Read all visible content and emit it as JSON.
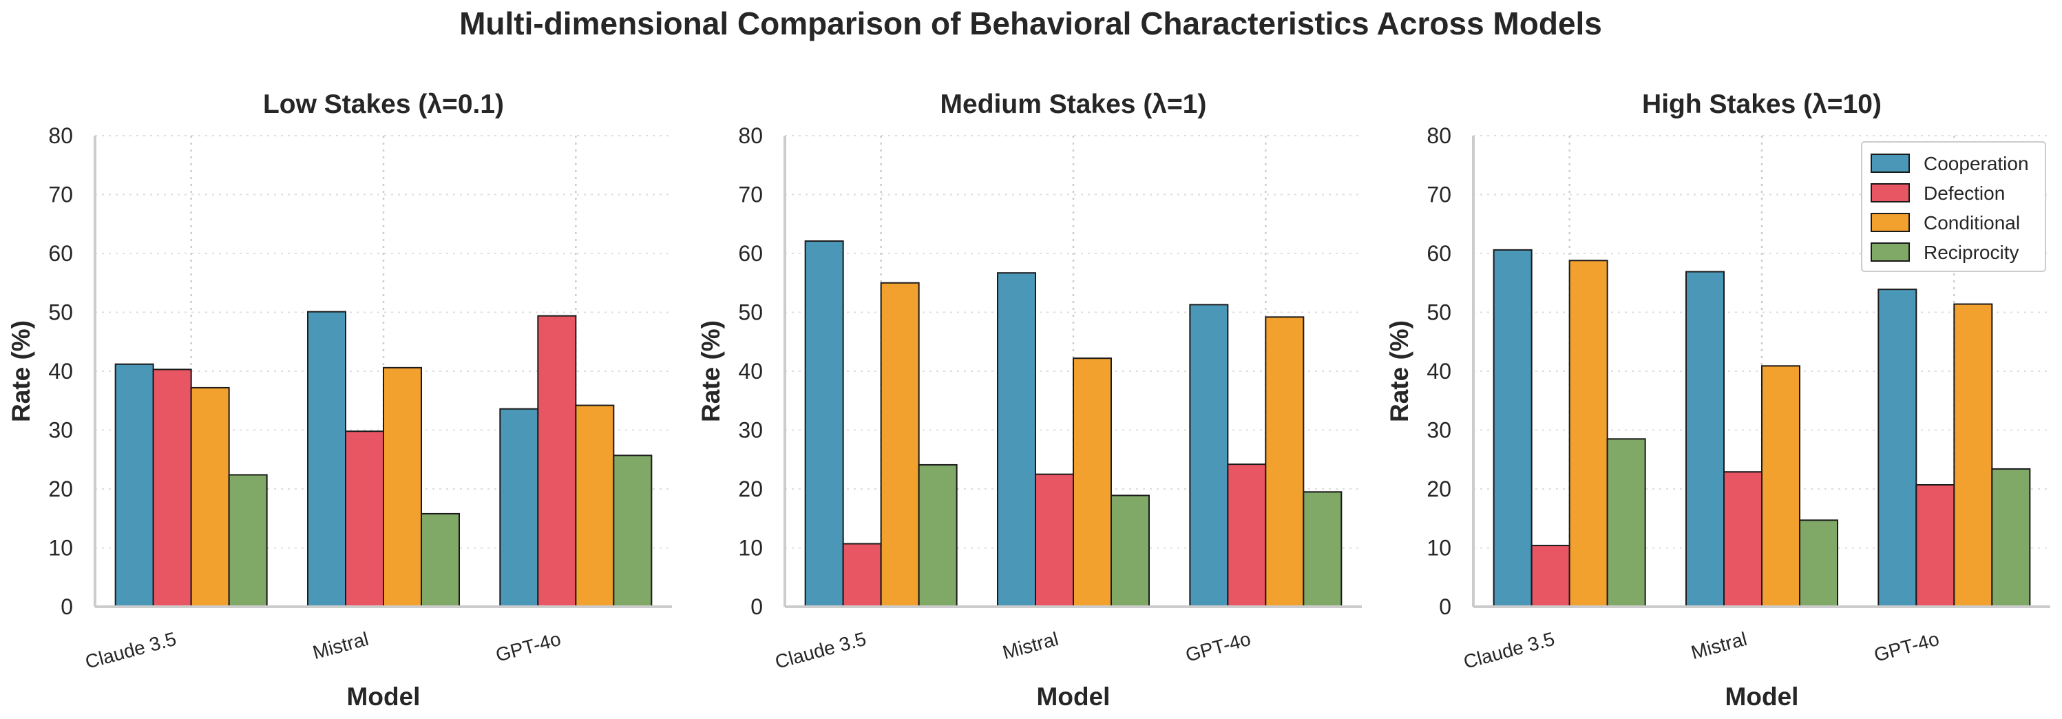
{
  "chart_data": {
    "type": "bar",
    "title": "Multi-dimensional Comparison of Behavioral Characteristics Across Models",
    "categories": [
      "Claude 3.5",
      "Mistral",
      "GPT-4o"
    ],
    "series_names": [
      "Cooperation",
      "Defection",
      "Conditional",
      "Reciprocity"
    ],
    "colors": [
      "#4b97b8",
      "#e85563",
      "#f2a02e",
      "#80a867"
    ],
    "xlabel": "Model",
    "ylabel": "Rate (%)",
    "ylim": [
      0,
      80
    ],
    "yticks": [
      0,
      10,
      20,
      30,
      40,
      50,
      60,
      70,
      80
    ],
    "legend": {
      "panel": 2,
      "position": "top-right"
    },
    "panels": [
      {
        "title": "Low Stakes (λ=0.1)",
        "series": [
          {
            "name": "Cooperation",
            "values": [
              41.2,
              50.1,
              33.6
            ]
          },
          {
            "name": "Defection",
            "values": [
              40.3,
              29.8,
              49.4
            ]
          },
          {
            "name": "Conditional",
            "values": [
              37.2,
              40.6,
              34.2
            ]
          },
          {
            "name": "Reciprocity",
            "values": [
              22.4,
              15.8,
              25.7
            ]
          }
        ]
      },
      {
        "title": "Medium Stakes (λ=1)",
        "series": [
          {
            "name": "Cooperation",
            "values": [
              62.1,
              56.7,
              51.3
            ]
          },
          {
            "name": "Defection",
            "values": [
              10.7,
              22.5,
              24.2
            ]
          },
          {
            "name": "Conditional",
            "values": [
              55.0,
              42.2,
              49.2
            ]
          },
          {
            "name": "Reciprocity",
            "values": [
              24.1,
              18.9,
              19.5
            ]
          }
        ]
      },
      {
        "title": "High Stakes (λ=10)",
        "series": [
          {
            "name": "Cooperation",
            "values": [
              60.6,
              56.9,
              53.9
            ]
          },
          {
            "name": "Defection",
            "values": [
              10.4,
              22.9,
              20.7
            ]
          },
          {
            "name": "Conditional",
            "values": [
              58.8,
              40.9,
              51.4
            ]
          },
          {
            "name": "Reciprocity",
            "values": [
              28.5,
              14.7,
              23.4
            ]
          }
        ]
      }
    ]
  }
}
